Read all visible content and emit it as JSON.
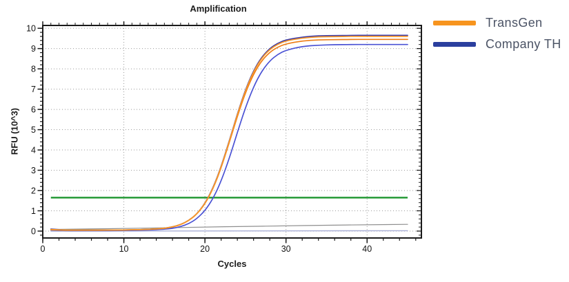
{
  "chart": {
    "title": "Amplification"
  },
  "chart_data": {
    "type": "line",
    "title": "Amplification",
    "xlabel": "Cycles",
    "ylabel": "RFU (10^3)",
    "xlim": [
      0,
      46.7
    ],
    "ylim": [
      -0.34,
      10.14
    ],
    "x_ticks": [
      0,
      10,
      20,
      30,
      40
    ],
    "y_ticks": [
      0,
      1,
      2,
      3,
      4,
      5,
      6,
      7,
      8,
      9,
      10
    ],
    "x_minor_step": 2,
    "y_minor_step": 0.2,
    "grid": "dotted",
    "grid_color": "#999999",
    "axis_color": "#1a1a1a",
    "legend_position": "right-outside",
    "legend": [
      {
        "label": "TransGen",
        "color": "#F7941E"
      },
      {
        "label": "Company TH",
        "color": "#2B3F9E"
      }
    ],
    "threshold": {
      "y": 1.65,
      "x_start": 1,
      "x_end": 45,
      "color": "#2F9E3F",
      "width": 2.6
    },
    "series": [
      {
        "id": "baseline-flat",
        "group": "background",
        "color": "#A9AFD6",
        "width": 1.4,
        "x": [
          1,
          45
        ],
        "y": [
          0.0,
          0.02
        ]
      },
      {
        "id": "background-drift",
        "group": "background",
        "color": "#8E8E8E",
        "width": 1.2,
        "x": [
          1,
          5,
          10,
          15,
          20,
          25,
          30,
          35,
          40,
          45
        ],
        "y": [
          0.08,
          0.1,
          0.13,
          0.16,
          0.2,
          0.23,
          0.26,
          0.29,
          0.31,
          0.33
        ]
      },
      {
        "id": "company-th-rep1",
        "group": "Company TH",
        "color": "#3B3BA8",
        "width": 1.7,
        "x": [
          1,
          2,
          3,
          5,
          7,
          9,
          11,
          13,
          15,
          16,
          17,
          18,
          19,
          20,
          21,
          22,
          23,
          24,
          25,
          26,
          27,
          28,
          29,
          30,
          32,
          34,
          36,
          38,
          40,
          42,
          45
        ],
        "y": [
          0.1,
          0.07,
          0.05,
          0.05,
          0.05,
          0.05,
          0.06,
          0.08,
          0.14,
          0.21,
          0.32,
          0.52,
          0.84,
          1.36,
          2.13,
          3.18,
          4.45,
          5.78,
          6.98,
          7.92,
          8.58,
          9.01,
          9.27,
          9.43,
          9.57,
          9.63,
          9.64,
          9.65,
          9.65,
          9.65,
          9.65
        ]
      },
      {
        "id": "company-th-rep2",
        "group": "Company TH",
        "color": "#4A52D4",
        "width": 1.7,
        "x": [
          1,
          2,
          3,
          5,
          7,
          9,
          11,
          13,
          15,
          16,
          17,
          18,
          19,
          20,
          21,
          22,
          23,
          24,
          25,
          26,
          27,
          28,
          29,
          30,
          32,
          34,
          36,
          38,
          40,
          42,
          45
        ],
        "y": [
          0.05,
          0.03,
          0.02,
          0.02,
          0.02,
          0.02,
          0.03,
          0.05,
          0.09,
          0.13,
          0.22,
          0.36,
          0.61,
          1.0,
          1.6,
          2.46,
          3.58,
          4.86,
          6.09,
          7.12,
          7.88,
          8.4,
          8.72,
          8.92,
          9.11,
          9.17,
          9.19,
          9.2,
          9.2,
          9.2,
          9.2
        ]
      },
      {
        "id": "transgen-rep2",
        "group": "TransGen",
        "color": "#EE7D15",
        "width": 1.7,
        "x": [
          1,
          2,
          3,
          5,
          7,
          9,
          11,
          13,
          15,
          16,
          17,
          18,
          19,
          20,
          21,
          22,
          23,
          24,
          25,
          26,
          27,
          28,
          29,
          30,
          32,
          34,
          36,
          38,
          40,
          42,
          45
        ],
        "y": [
          0.06,
          0.05,
          0.04,
          0.04,
          0.04,
          0.05,
          0.06,
          0.08,
          0.13,
          0.2,
          0.31,
          0.51,
          0.83,
          1.33,
          2.08,
          3.11,
          4.36,
          5.66,
          6.83,
          7.75,
          8.4,
          8.82,
          9.08,
          9.23,
          9.38,
          9.43,
          9.44,
          9.45,
          9.45,
          9.45,
          9.45
        ]
      },
      {
        "id": "transgen-rep1",
        "group": "TransGen",
        "color": "#F8982B",
        "width": 1.7,
        "x": [
          1,
          2,
          3,
          5,
          7,
          9,
          11,
          13,
          15,
          16,
          17,
          18,
          19,
          20,
          21,
          22,
          23,
          24,
          25,
          26,
          27,
          28,
          29,
          30,
          32,
          34,
          36,
          38,
          40,
          42,
          45
        ],
        "y": [
          0.08,
          0.06,
          0.05,
          0.05,
          0.05,
          0.05,
          0.06,
          0.08,
          0.14,
          0.21,
          0.32,
          0.52,
          0.84,
          1.35,
          2.11,
          3.16,
          4.42,
          5.75,
          6.94,
          7.87,
          8.53,
          8.96,
          9.22,
          9.38,
          9.52,
          9.58,
          9.59,
          9.6,
          9.6,
          9.6,
          9.6
        ]
      }
    ]
  }
}
